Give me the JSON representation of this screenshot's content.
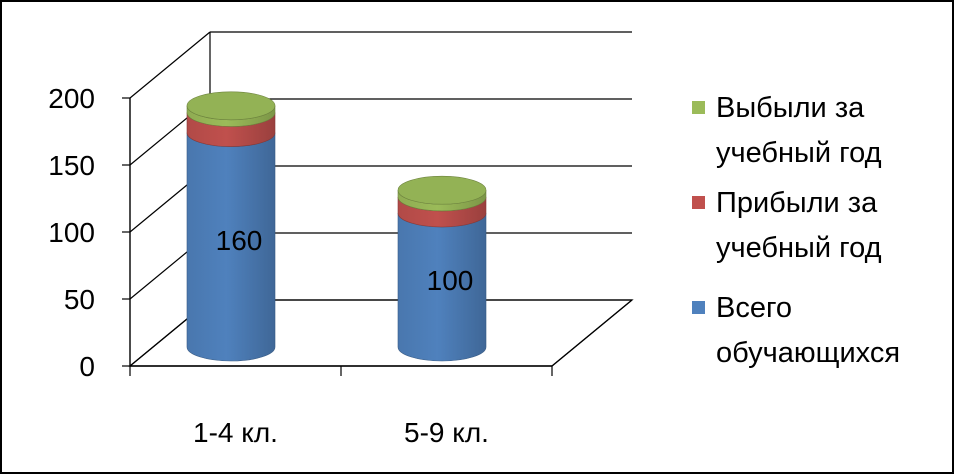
{
  "chart_data": {
    "type": "bar",
    "style": "3d-cylinder-stacked",
    "categories": [
      "1-4 кл.",
      "5-9 кл."
    ],
    "series": [
      {
        "name": "Всего обучающихся",
        "values": [
          160,
          100
        ],
        "color": "#4F81BD"
      },
      {
        "name": "Прибыли за учебный год",
        "values": [
          15,
          12
        ],
        "color": "#C0504D"
      },
      {
        "name": "Выбыли за учебный год",
        "values": [
          5,
          5
        ],
        "color": "#9BBB59"
      }
    ],
    "data_labels": [
      "160",
      "100"
    ],
    "y_ticks": [
      "0",
      "50",
      "100",
      "150",
      "200"
    ],
    "ylim": [
      0,
      200
    ],
    "grid": true,
    "legend_position": "right",
    "legend_order": [
      2,
      1,
      0
    ],
    "legend_lines": [
      [
        "Выбыли за",
        "учебный год"
      ],
      [
        "Прибыли за",
        "учебный год"
      ],
      [
        "Всего",
        "обучающихся"
      ]
    ]
  }
}
